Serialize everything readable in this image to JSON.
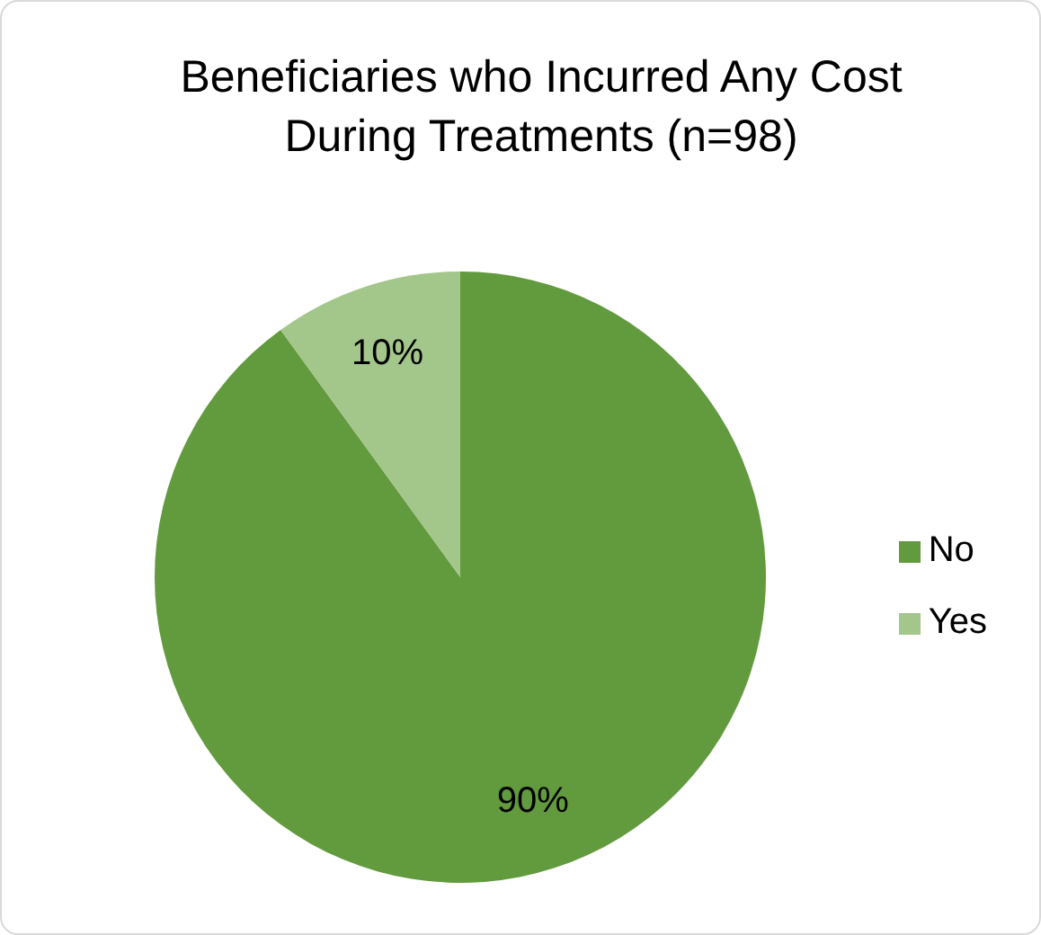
{
  "chart_data": {
    "type": "pie",
    "title": "Beneficiaries who Incurred Any Cost During Treatments (n=98)",
    "categories": [
      "No",
      "Yes"
    ],
    "values": [
      90,
      10
    ],
    "value_labels": [
      "90%",
      "10%"
    ],
    "colors": [
      "#629a3e",
      "#a3c68b"
    ],
    "legend": "right"
  }
}
